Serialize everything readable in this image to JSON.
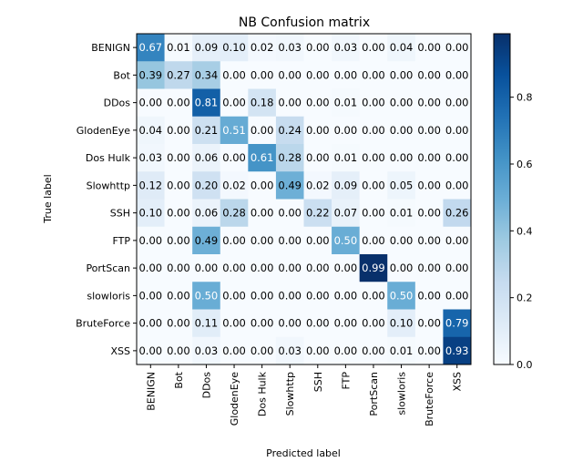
{
  "chart_data": {
    "type": "heatmap",
    "title": "NB Confusion matrix",
    "xlabel": "Predicted label",
    "ylabel": "True label",
    "x_categories": [
      "BENIGN",
      "Bot",
      "DDos",
      "GlodenEye",
      "Dos Hulk",
      "Slowhttp",
      "SSH",
      "FTP",
      "PortScan",
      "slowloris",
      "BruteForce",
      "XSS"
    ],
    "y_categories": [
      "BENIGN",
      "Bot",
      "DDos",
      "GlodenEye",
      "Dos Hulk",
      "Slowhttp",
      "SSH",
      "FTP",
      "PortScan",
      "slowloris",
      "BruteForce",
      "XSS"
    ],
    "values": [
      [
        0.67,
        0.01,
        0.09,
        0.1,
        0.02,
        0.03,
        0.0,
        0.03,
        0.0,
        0.04,
        0.0,
        0.0
      ],
      [
        0.39,
        0.27,
        0.34,
        0.0,
        0.0,
        0.0,
        0.0,
        0.0,
        0.0,
        0.0,
        0.0,
        0.0
      ],
      [
        0.0,
        0.0,
        0.81,
        0.0,
        0.18,
        0.0,
        0.0,
        0.01,
        0.0,
        0.0,
        0.0,
        0.0
      ],
      [
        0.04,
        0.0,
        0.21,
        0.51,
        0.0,
        0.24,
        0.0,
        0.0,
        0.0,
        0.0,
        0.0,
        0.0
      ],
      [
        0.03,
        0.0,
        0.06,
        0.0,
        0.61,
        0.28,
        0.0,
        0.01,
        0.0,
        0.0,
        0.0,
        0.0
      ],
      [
        0.12,
        0.0,
        0.2,
        0.02,
        0.0,
        0.49,
        0.02,
        0.09,
        0.0,
        0.05,
        0.0,
        0.0
      ],
      [
        0.1,
        0.0,
        0.06,
        0.28,
        0.0,
        0.0,
        0.22,
        0.07,
        0.0,
        0.01,
        0.0,
        0.26
      ],
      [
        0.0,
        0.0,
        0.49,
        0.0,
        0.0,
        0.0,
        0.0,
        0.5,
        0.0,
        0.0,
        0.0,
        0.0
      ],
      [
        0.0,
        0.0,
        0.0,
        0.0,
        0.0,
        0.0,
        0.0,
        0.0,
        0.99,
        0.0,
        0.0,
        0.0
      ],
      [
        0.0,
        0.0,
        0.5,
        0.0,
        0.0,
        0.0,
        0.0,
        0.0,
        0.0,
        0.5,
        0.0,
        0.0
      ],
      [
        0.0,
        0.0,
        0.11,
        0.0,
        0.0,
        0.0,
        0.0,
        0.0,
        0.0,
        0.1,
        0.0,
        0.79
      ],
      [
        0.0,
        0.0,
        0.03,
        0.0,
        0.0,
        0.03,
        0.0,
        0.0,
        0.0,
        0.01,
        0.0,
        0.93
      ]
    ],
    "colormap": "Blues",
    "colorbar_range": [
      0.0,
      0.99
    ],
    "colorbar_ticks": [
      "0.0",
      "0.2",
      "0.4",
      "0.6",
      "0.8"
    ],
    "colorbar_tick_values": [
      0.0,
      0.2,
      0.4,
      0.6,
      0.8
    ],
    "grid": false
  }
}
